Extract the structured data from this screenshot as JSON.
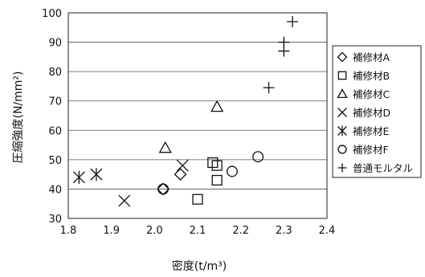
{
  "chart_data": {
    "type": "scatter",
    "xlabel": "密度(t/m³)",
    "ylabel": "圧縮強度(N/mm²)",
    "xlim": [
      1.8,
      2.4
    ],
    "ylim": [
      30,
      100
    ],
    "x_ticks": [
      1.8,
      1.9,
      2.0,
      2.1,
      2.2,
      2.3,
      2.4
    ],
    "x_tick_labels": [
      "1.8",
      "1.9",
      "2.0",
      "2.1",
      "2.2",
      "2.3",
      "2.4"
    ],
    "y_ticks": [
      30,
      40,
      50,
      60,
      70,
      80,
      90,
      100
    ],
    "y_tick_labels": [
      "30",
      "40",
      "50",
      "60",
      "70",
      "80",
      "90",
      "100"
    ],
    "grid": "horizontal",
    "legend_position": "right",
    "series": [
      {
        "name": "補修材A",
        "marker": "diamond",
        "points": [
          [
            2.02,
            40
          ],
          [
            2.06,
            45
          ]
        ]
      },
      {
        "name": "補修材B",
        "marker": "square",
        "points": [
          [
            2.1,
            36.5
          ],
          [
            2.135,
            49
          ],
          [
            2.145,
            48
          ],
          [
            2.145,
            43
          ]
        ]
      },
      {
        "name": "補修材C",
        "marker": "triangle",
        "points": [
          [
            2.025,
            54
          ],
          [
            2.145,
            68
          ]
        ]
      },
      {
        "name": "補修材D",
        "marker": "x",
        "points": [
          [
            1.93,
            36
          ],
          [
            2.065,
            48
          ]
        ]
      },
      {
        "name": "補修材E",
        "marker": "asterisk",
        "points": [
          [
            1.825,
            44
          ],
          [
            1.865,
            45
          ]
        ]
      },
      {
        "name": "補修材F",
        "marker": "circle",
        "points": [
          [
            2.02,
            40
          ],
          [
            2.18,
            46
          ],
          [
            2.24,
            51
          ]
        ]
      },
      {
        "name": "普通モルタル",
        "marker": "plus",
        "points": [
          [
            2.265,
            74.5
          ],
          [
            2.3,
            87
          ],
          [
            2.3,
            90
          ],
          [
            2.32,
            97
          ]
        ]
      }
    ]
  }
}
